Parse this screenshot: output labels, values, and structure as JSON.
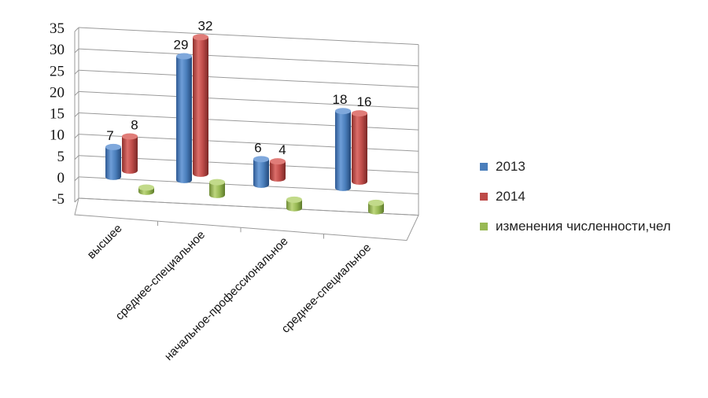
{
  "chart_data": {
    "type": "bar",
    "title": "",
    "xlabel": "",
    "ylabel": "",
    "ylim": [
      -5,
      35
    ],
    "yticks": [
      -5,
      0,
      5,
      10,
      15,
      20,
      25,
      30,
      35
    ],
    "grid": true,
    "legend_position": "right",
    "categories": [
      "высшее",
      "среднее-специальное",
      "начальное-профессиональное",
      "среднее-специальное"
    ],
    "series": [
      {
        "name": "2013",
        "values": [
          7,
          29,
          6,
          18
        ],
        "color": "#4a7ebb"
      },
      {
        "name": "2014",
        "values": [
          8,
          32,
          4,
          16
        ],
        "color": "#be4b48"
      },
      {
        "name": "изменения численности,чел",
        "values": [
          1,
          3,
          -2,
          -2
        ],
        "color": "#98b954"
      }
    ],
    "data_labels": [
      {
        "series": 0,
        "shown": [
          true,
          true,
          true,
          true
        ]
      },
      {
        "series": 1,
        "shown": [
          true,
          true,
          true,
          true
        ]
      },
      {
        "series": 2,
        "shown": [
          false,
          false,
          false,
          false
        ]
      }
    ]
  }
}
